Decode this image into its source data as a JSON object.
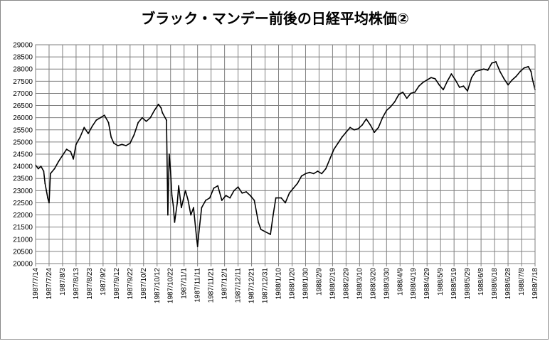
{
  "chart_data": {
    "type": "line",
    "title": "ブラック・マンデー前後の日経平均株価②",
    "xlabel": "",
    "ylabel": "",
    "ylim": [
      20000,
      29000
    ],
    "ytick_step": 500,
    "yticks": [
      "20000",
      "20500",
      "21000",
      "21500",
      "22000",
      "22500",
      "23000",
      "23500",
      "24000",
      "24500",
      "25000",
      "25500",
      "26000",
      "26500",
      "27000",
      "27500",
      "28000",
      "28500",
      "29000"
    ],
    "xlim": [
      "1987/7/14",
      "1988/7/18"
    ],
    "xticks": [
      "1987/7/14",
      "1987/7/24",
      "1987/8/3",
      "1987/8/13",
      "1987/8/23",
      "1987/9/2",
      "1987/9/12",
      "1987/9/22",
      "1987/10/2",
      "1987/10/12",
      "1987/10/22",
      "1987/11/1",
      "1987/11/11",
      "1987/11/21",
      "1987/12/1",
      "1987/12/11",
      "1987/12/21",
      "1987/12/31",
      "1988/1/10",
      "1988/1/20",
      "1988/1/30",
      "1988/2/9",
      "1988/2/19",
      "1988/2/29",
      "1988/3/10",
      "1988/3/20",
      "1988/3/30",
      "1988/4/9",
      "1988/4/19",
      "1988/4/29",
      "1988/5/9",
      "1988/5/19",
      "1988/5/29",
      "1988/6/8",
      "1988/6/18",
      "1988/6/28",
      "1988/7/8",
      "1988/7/18"
    ],
    "grid": true,
    "line_color": "#000000",
    "series": [
      {
        "name": "",
        "points": [
          [
            "1987/7/14",
            24050
          ],
          [
            "1987/7/16",
            23900
          ],
          [
            "1987/7/18",
            24000
          ],
          [
            "1987/7/20",
            23800
          ],
          [
            "1987/7/21",
            23300
          ],
          [
            "1987/7/22",
            23000
          ],
          [
            "1987/7/23",
            22700
          ],
          [
            "1987/7/24",
            22500
          ],
          [
            "1987/7/25",
            23700
          ],
          [
            "1987/7/28",
            23900
          ],
          [
            "1987/7/31",
            24200
          ],
          [
            "1987/8/3",
            24450
          ],
          [
            "1987/8/6",
            24700
          ],
          [
            "1987/8/9",
            24600
          ],
          [
            "1987/8/11",
            24300
          ],
          [
            "1987/8/13",
            24900
          ],
          [
            "1987/8/16",
            25200
          ],
          [
            "1987/8/19",
            25600
          ],
          [
            "1987/8/22",
            25350
          ],
          [
            "1987/8/25",
            25650
          ],
          [
            "1987/8/28",
            25900
          ],
          [
            "1987/8/31",
            26000
          ],
          [
            "1987/9/3",
            26100
          ],
          [
            "1987/9/6",
            25800
          ],
          [
            "1987/9/8",
            25200
          ],
          [
            "1987/9/10",
            24950
          ],
          [
            "1987/9/13",
            24850
          ],
          [
            "1987/9/16",
            24900
          ],
          [
            "1987/9/19",
            24850
          ],
          [
            "1987/9/22",
            24950
          ],
          [
            "1987/9/25",
            25300
          ],
          [
            "1987/9/28",
            25800
          ],
          [
            "1987/10/1",
            26000
          ],
          [
            "1987/10/4",
            25850
          ],
          [
            "1987/10/7",
            26000
          ],
          [
            "1987/10/10",
            26300
          ],
          [
            "1987/10/13",
            26550
          ],
          [
            "1987/10/15",
            26400
          ],
          [
            "1987/10/16",
            26200
          ],
          [
            "1987/10/19",
            25900
          ],
          [
            "1987/10/20",
            22000
          ],
          [
            "1987/10/21",
            24500
          ],
          [
            "1987/10/22",
            23800
          ],
          [
            "1987/10/23",
            22800
          ],
          [
            "1987/10/24",
            22400
          ],
          [
            "1987/10/25",
            21700
          ],
          [
            "1987/10/27",
            22500
          ],
          [
            "1987/10/28",
            23200
          ],
          [
            "1987/10/30",
            22300
          ],
          [
            "1987/11/2",
            23000
          ],
          [
            "1987/11/4",
            22600
          ],
          [
            "1987/11/6",
            22000
          ],
          [
            "1987/11/8",
            22300
          ],
          [
            "1987/11/10",
            21200
          ],
          [
            "1987/11/11",
            20700
          ],
          [
            "1987/11/12",
            21300
          ],
          [
            "1987/11/14",
            22300
          ],
          [
            "1987/11/17",
            22600
          ],
          [
            "1987/11/20",
            22700
          ],
          [
            "1987/11/23",
            23100
          ],
          [
            "1987/11/26",
            23200
          ],
          [
            "1987/11/29",
            22600
          ],
          [
            "1987/12/2",
            22800
          ],
          [
            "1987/12/5",
            22700
          ],
          [
            "1987/12/8",
            23000
          ],
          [
            "1987/12/11",
            23150
          ],
          [
            "1987/12/14",
            22900
          ],
          [
            "1987/12/17",
            22950
          ],
          [
            "1987/12/20",
            22800
          ],
          [
            "1987/12/23",
            22600
          ],
          [
            "1987/12/26",
            21700
          ],
          [
            "1987/12/28",
            21400
          ],
          [
            "1988/1/4",
            21200
          ],
          [
            "1988/1/6",
            22000
          ],
          [
            "1988/1/8",
            22700
          ],
          [
            "1988/1/12",
            22700
          ],
          [
            "1988/1/15",
            22500
          ],
          [
            "1988/1/18",
            22900
          ],
          [
            "1988/1/21",
            23100
          ],
          [
            "1988/1/24",
            23300
          ],
          [
            "1988/1/27",
            23600
          ],
          [
            "1988/1/30",
            23700
          ],
          [
            "1988/2/2",
            23750
          ],
          [
            "1988/2/5",
            23700
          ],
          [
            "1988/2/8",
            23800
          ],
          [
            "1988/2/11",
            23700
          ],
          [
            "1988/2/14",
            23900
          ],
          [
            "1988/2/17",
            24300
          ],
          [
            "1988/2/20",
            24700
          ],
          [
            "1988/2/23",
            24950
          ],
          [
            "1988/2/26",
            25200
          ],
          [
            "1988/2/29",
            25400
          ],
          [
            "1988/3/3",
            25600
          ],
          [
            "1988/3/6",
            25500
          ],
          [
            "1988/3/9",
            25550
          ],
          [
            "1988/3/12",
            25700
          ],
          [
            "1988/3/15",
            25950
          ],
          [
            "1988/3/18",
            25700
          ],
          [
            "1988/3/21",
            25400
          ],
          [
            "1988/3/24",
            25600
          ],
          [
            "1988/3/27",
            26000
          ],
          [
            "1988/3/30",
            26300
          ],
          [
            "1988/4/2",
            26450
          ],
          [
            "1988/4/5",
            26650
          ],
          [
            "1988/4/8",
            26950
          ],
          [
            "1988/4/11",
            27050
          ],
          [
            "1988/4/14",
            26800
          ],
          [
            "1988/4/17",
            27000
          ],
          [
            "1988/4/20",
            27050
          ],
          [
            "1988/4/23",
            27300
          ],
          [
            "1988/4/26",
            27450
          ],
          [
            "1988/4/29",
            27550
          ],
          [
            "1988/5/2",
            27650
          ],
          [
            "1988/5/5",
            27600
          ],
          [
            "1988/5/8",
            27350
          ],
          [
            "1988/5/11",
            27150
          ],
          [
            "1988/5/14",
            27500
          ],
          [
            "1988/5/17",
            27800
          ],
          [
            "1988/5/20",
            27550
          ],
          [
            "1988/5/23",
            27250
          ],
          [
            "1988/5/26",
            27300
          ],
          [
            "1988/5/29",
            27100
          ],
          [
            "1988/6/1",
            27650
          ],
          [
            "1988/6/4",
            27900
          ],
          [
            "1988/6/7",
            27950
          ],
          [
            "1988/6/10",
            28000
          ],
          [
            "1988/6/13",
            27950
          ],
          [
            "1988/6/16",
            28250
          ],
          [
            "1988/6/19",
            28300
          ],
          [
            "1988/6/22",
            27900
          ],
          [
            "1988/6/25",
            27600
          ],
          [
            "1988/6/28",
            27350
          ],
          [
            "1988/7/1",
            27550
          ],
          [
            "1988/7/4",
            27700
          ],
          [
            "1988/7/7",
            27900
          ],
          [
            "1988/7/10",
            28050
          ],
          [
            "1988/7/13",
            28100
          ],
          [
            "1988/7/15",
            27900
          ],
          [
            "1988/7/16",
            27600
          ],
          [
            "1988/7/18",
            27150
          ]
        ]
      }
    ]
  }
}
